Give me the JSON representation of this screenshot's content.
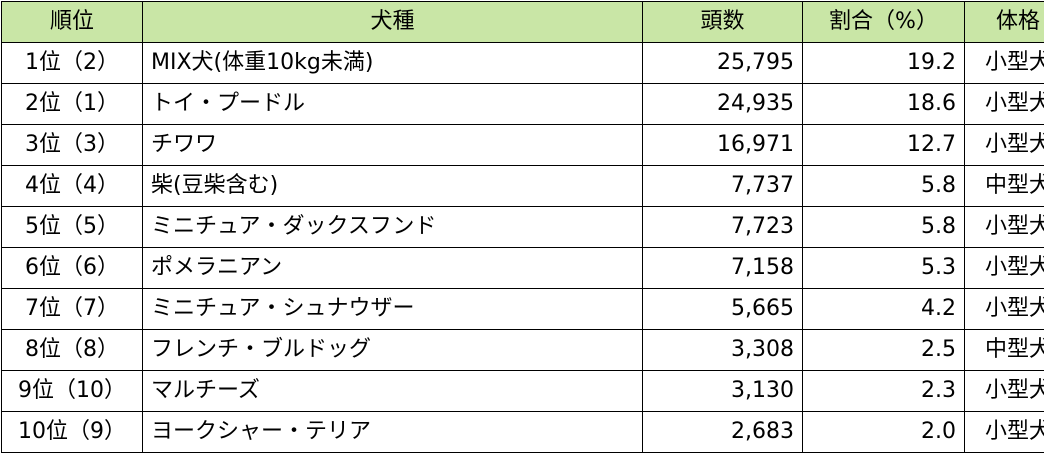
{
  "table": {
    "headers": [
      "順位",
      "犬種",
      "頭数",
      "割合（%）",
      "体格"
    ],
    "rows": [
      {
        "rank": "1位（2）",
        "breed": "MIX犬(体重10kg未満)",
        "count": "25,795",
        "pct": "19.2",
        "size": "小型犬"
      },
      {
        "rank": "2位（1）",
        "breed": "トイ・プードル",
        "count": "24,935",
        "pct": "18.6",
        "size": "小型犬"
      },
      {
        "rank": "3位（3）",
        "breed": "チワワ",
        "count": "16,971",
        "pct": "12.7",
        "size": "小型犬"
      },
      {
        "rank": "4位（4）",
        "breed": "柴(豆柴含む)",
        "count": "7,737",
        "pct": "5.8",
        "size": "中型犬"
      },
      {
        "rank": "5位（5）",
        "breed": "ミニチュア・ダックスフンド",
        "count": "7,723",
        "pct": "5.8",
        "size": "小型犬"
      },
      {
        "rank": "6位（6）",
        "breed": "ポメラニアン",
        "count": "7,158",
        "pct": "5.3",
        "size": "小型犬"
      },
      {
        "rank": "7位（7）",
        "breed": "ミニチュア・シュナウザー",
        "count": "5,665",
        "pct": "4.2",
        "size": "小型犬"
      },
      {
        "rank": "8位（8）",
        "breed": "フレンチ・ブルドッグ",
        "count": "3,308",
        "pct": "2.5",
        "size": "中型犬"
      },
      {
        "rank": "9位（10）",
        "breed": "マルチーズ",
        "count": "3,130",
        "pct": "2.3",
        "size": "小型犬"
      },
      {
        "rank": "10位（9）",
        "breed": "ヨークシャー・テリア",
        "count": "2,683",
        "pct": "2.0",
        "size": "小型犬"
      }
    ]
  },
  "colors": {
    "header_bg": "#c9e6a6",
    "border": "#000000",
    "text": "#000000"
  }
}
